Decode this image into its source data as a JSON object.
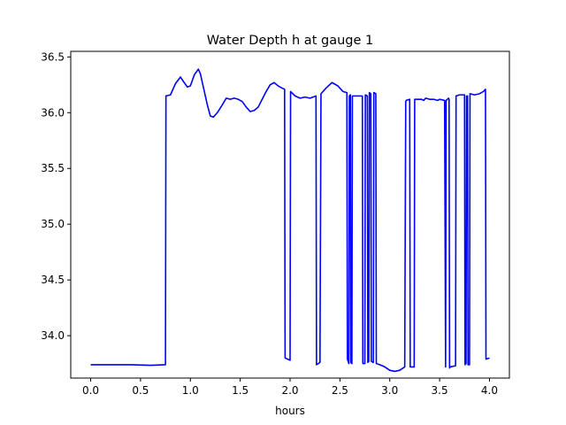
{
  "chart_data": {
    "type": "line",
    "title": "Water Depth h at gauge 1",
    "xlabel": "hours",
    "ylabel": "",
    "xlim": [
      -0.2,
      4.2
    ],
    "ylim": [
      33.62,
      36.55
    ],
    "xticks": [
      0.0,
      0.5,
      1.0,
      1.5,
      2.0,
      2.5,
      3.0,
      3.5,
      4.0
    ],
    "xtick_labels": [
      "0.0",
      "0.5",
      "1.0",
      "1.5",
      "2.0",
      "2.5",
      "3.0",
      "3.5",
      "4.0"
    ],
    "yticks": [
      34.0,
      34.5,
      35.0,
      35.5,
      36.0,
      36.5
    ],
    "ytick_labels": [
      "34.0",
      "34.5",
      "35.0",
      "35.5",
      "36.0",
      "36.5"
    ],
    "grid": false,
    "colors": {
      "line": "#0000ff",
      "axes": "#000000",
      "background": "#ffffff"
    },
    "series": [
      {
        "x": [
          0.0,
          0.2,
          0.4,
          0.6,
          0.75,
          0.755,
          0.8,
          0.85,
          0.9,
          0.93,
          0.97,
          1.0,
          1.04,
          1.08,
          1.1,
          1.13,
          1.17,
          1.2,
          1.23,
          1.27,
          1.32,
          1.36,
          1.4,
          1.44,
          1.48,
          1.52,
          1.56,
          1.6,
          1.64,
          1.68,
          1.72,
          1.76,
          1.8,
          1.84,
          1.88,
          1.92,
          1.945,
          1.95,
          2.0,
          2.005,
          2.05,
          2.1,
          2.15,
          2.2,
          2.26,
          2.265,
          2.3,
          2.31,
          2.36,
          2.42,
          2.48,
          2.53,
          2.57,
          2.575,
          2.59,
          2.595,
          2.605,
          2.61,
          2.62,
          2.625,
          2.725,
          2.73,
          2.75,
          2.755,
          2.775,
          2.78,
          2.79,
          2.795,
          2.81,
          2.815,
          2.835,
          2.84,
          2.86,
          2.865,
          2.9,
          2.95,
          3.0,
          3.05,
          3.1,
          3.15,
          3.16,
          3.165,
          3.2,
          3.205,
          3.245,
          3.25,
          3.3,
          3.32,
          3.34,
          3.36,
          3.4,
          3.44,
          3.48,
          3.5,
          3.55,
          3.56,
          3.565,
          3.59,
          3.595,
          3.6,
          3.605,
          3.66,
          3.665,
          3.7,
          3.75,
          3.755,
          3.765,
          3.77,
          3.78,
          3.785,
          3.8,
          3.805,
          3.85,
          3.9,
          3.94,
          3.96,
          3.965,
          4.0
        ],
        "y": [
          33.74,
          33.74,
          33.74,
          33.735,
          33.74,
          36.15,
          36.16,
          36.26,
          36.32,
          36.28,
          36.23,
          36.24,
          36.34,
          36.39,
          36.35,
          36.23,
          36.07,
          35.97,
          35.96,
          36.0,
          36.07,
          36.13,
          36.12,
          36.13,
          36.12,
          36.1,
          36.05,
          36.01,
          36.02,
          36.05,
          36.12,
          36.19,
          36.25,
          36.27,
          36.24,
          36.22,
          36.21,
          33.8,
          33.78,
          36.19,
          36.15,
          36.13,
          36.14,
          36.13,
          36.15,
          33.74,
          33.76,
          36.17,
          36.22,
          36.27,
          36.24,
          36.19,
          36.18,
          33.79,
          33.75,
          36.15,
          36.16,
          33.76,
          33.75,
          36.15,
          36.15,
          33.75,
          33.75,
          36.16,
          36.15,
          33.76,
          33.77,
          36.18,
          36.17,
          33.77,
          33.76,
          36.18,
          36.17,
          33.75,
          33.74,
          33.72,
          33.69,
          33.68,
          33.69,
          33.72,
          36.1,
          36.11,
          36.12,
          33.72,
          33.72,
          36.12,
          36.12,
          36.12,
          36.11,
          36.13,
          36.12,
          36.12,
          36.11,
          36.12,
          36.11,
          33.72,
          36.11,
          36.13,
          36.12,
          33.71,
          33.72,
          33.73,
          36.15,
          36.16,
          36.16,
          33.74,
          33.75,
          36.15,
          36.15,
          33.74,
          33.74,
          36.17,
          36.16,
          36.17,
          36.19,
          36.21,
          33.79,
          33.8
        ]
      }
    ]
  }
}
